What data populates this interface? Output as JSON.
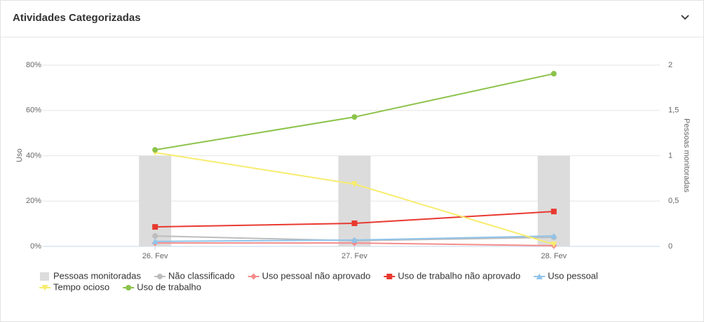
{
  "header": {
    "title": "Atividades Categorizadas"
  },
  "chart_data": {
    "type": "bar-line",
    "y_label": "Uso",
    "y2_label": "Pessoas monitoradas",
    "categories": [
      "26. Fev",
      "27. Fev",
      "28. Fev"
    ],
    "ylim": [
      0,
      80
    ],
    "yticks": [
      {
        "value": 0,
        "label": "0%"
      },
      {
        "value": 20,
        "label": "20%"
      },
      {
        "value": 40,
        "label": "40%"
      },
      {
        "value": 60,
        "label": "60%"
      },
      {
        "value": 80,
        "label": "80%"
      }
    ],
    "y2lim": [
      0,
      2
    ],
    "y2ticks": [
      0,
      {
        "value": 0.5,
        "label": "0,5"
      },
      1,
      {
        "value": 1.5,
        "label": "1,5"
      },
      2
    ],
    "grid": true,
    "bars": {
      "name": "Pessoas monitoradas",
      "color": "#dcdcdc",
      "axis": "y2",
      "values": [
        1,
        1,
        1
      ]
    },
    "series": [
      {
        "name": "Não classificado",
        "color": "#bdbdbd",
        "marker": "circle",
        "values": [
          4.6,
          2.5,
          4
        ]
      },
      {
        "name": "Uso pessoal não aprovado",
        "color": "#f48c8c",
        "marker": "diamond",
        "values": [
          1.5,
          1.5,
          0.3
        ]
      },
      {
        "name": "Uso de trabalho não aprovado",
        "color": "#e8392f",
        "marker": "square",
        "values": [
          8.6,
          10.2,
          15.4
        ]
      },
      {
        "name": "Uso pessoal",
        "color": "#90c4ea",
        "marker": "triangle",
        "values": [
          2.2,
          2.8,
          4.6
        ]
      },
      {
        "name": "Tempo ocioso",
        "color": "#f7ec6d",
        "marker": "triangle-down",
        "values": [
          41.4,
          27.5,
          0.9
        ]
      },
      {
        "name": "Uso de trabalho",
        "color": "#8bc34a",
        "marker": "circle",
        "values": [
          42.6,
          57.1,
          76.2
        ]
      }
    ]
  }
}
